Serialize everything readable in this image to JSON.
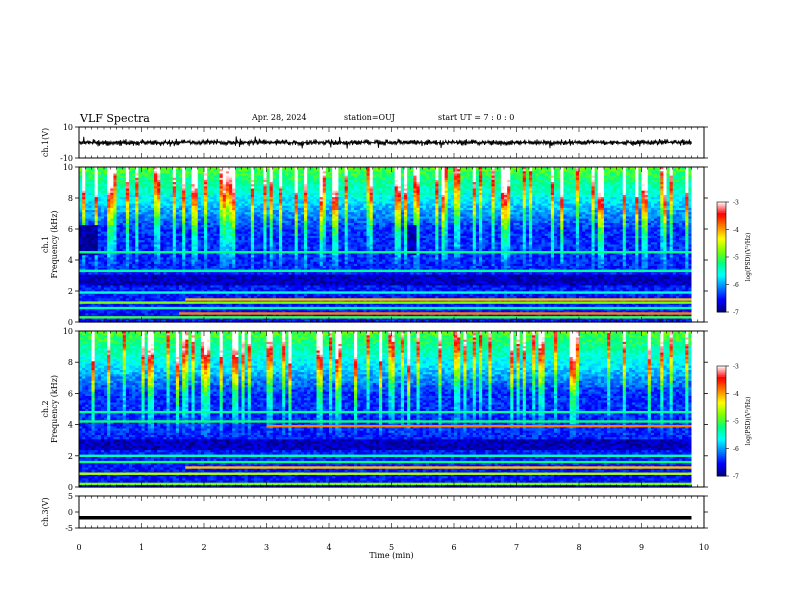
{
  "header": {
    "title": "VLF Spectra",
    "date": "Apr. 28, 2024",
    "station": "station=OUJ",
    "start_ut": "start UT =  7 : 0  : 0"
  },
  "chart_data": [
    {
      "type": "line",
      "title": "",
      "ylabel": "ch.1(V)",
      "ylim": [
        -10,
        10
      ],
      "yticks": [
        "10",
        "-10"
      ],
      "description_series": "broadband waveform amplitude",
      "x": [
        0,
        9.8
      ],
      "baseline": 0
    },
    {
      "type": "heatmap",
      "ylabel": "ch.1\nFrequency (kHz)",
      "ylim": [
        0,
        10
      ],
      "yticks": [
        "0",
        "2",
        "4",
        "6",
        "8",
        "10"
      ],
      "colorbar": {
        "label": "log(PSD)(V²/Hz)",
        "range": [
          -7,
          -3
        ],
        "ticks": [
          "-3",
          "-4",
          "-5",
          "-6",
          "-7"
        ]
      },
      "x_range_min": [
        0,
        9.8
      ]
    },
    {
      "type": "heatmap",
      "ylabel": "ch.2\nFrequency (kHz)",
      "ylim": [
        0,
        10
      ],
      "yticks": [
        "0",
        "2",
        "4",
        "6",
        "8",
        "10"
      ],
      "colorbar": {
        "label": "log(PSD)(V²/Hz)",
        "range": [
          -7,
          -3
        ],
        "ticks": [
          "-3",
          "-4",
          "-5",
          "-6",
          "-7"
        ]
      },
      "x_range_min": [
        0,
        9.8
      ]
    },
    {
      "type": "line",
      "ylabel": "ch.3(V)",
      "ylim": [
        -5,
        5
      ],
      "yticks": [
        "5",
        "0",
        "-5"
      ],
      "x": [
        0,
        9.8
      ],
      "values": [
        -1.8,
        -1.8
      ]
    }
  ],
  "xaxis": {
    "label": "Time (min)",
    "ticks": [
      "0",
      "1",
      "2",
      "3",
      "4",
      "5",
      "6",
      "7",
      "8",
      "9",
      "10"
    ],
    "range": [
      0,
      10
    ]
  },
  "colors": {
    "colormap": [
      "#000080",
      "#0000ff",
      "#0080ff",
      "#00ffff",
      "#00ff80",
      "#80ff00",
      "#ffff00",
      "#ff8000",
      "#ff0000",
      "#ffffff"
    ]
  }
}
